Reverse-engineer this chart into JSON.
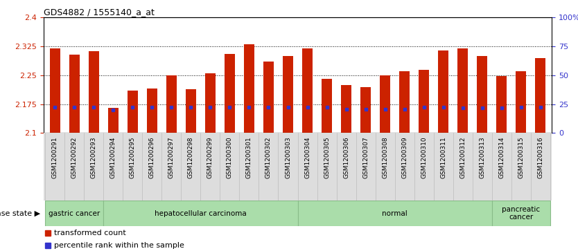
{
  "title": "GDS4882 / 1555140_a_at",
  "samples": [
    "GSM1200291",
    "GSM1200292",
    "GSM1200293",
    "GSM1200294",
    "GSM1200295",
    "GSM1200296",
    "GSM1200297",
    "GSM1200298",
    "GSM1200299",
    "GSM1200300",
    "GSM1200301",
    "GSM1200302",
    "GSM1200303",
    "GSM1200304",
    "GSM1200305",
    "GSM1200306",
    "GSM1200307",
    "GSM1200308",
    "GSM1200309",
    "GSM1200310",
    "GSM1200311",
    "GSM1200312",
    "GSM1200313",
    "GSM1200314",
    "GSM1200315",
    "GSM1200316"
  ],
  "bar_values": [
    2.319,
    2.303,
    2.313,
    2.165,
    2.21,
    2.215,
    2.25,
    2.213,
    2.255,
    2.306,
    2.33,
    2.285,
    2.3,
    2.32,
    2.24,
    2.225,
    2.22,
    2.25,
    2.26,
    2.265,
    2.315,
    2.32,
    2.3,
    2.248,
    2.26,
    2.295
  ],
  "percentile_values": [
    2.168,
    2.168,
    2.168,
    2.16,
    2.168,
    2.168,
    2.168,
    2.168,
    2.168,
    2.168,
    2.168,
    2.168,
    2.168,
    2.168,
    2.168,
    2.162,
    2.162,
    2.162,
    2.162,
    2.168,
    2.168,
    2.165,
    2.165,
    2.165,
    2.168,
    2.168
  ],
  "ylim": [
    2.1,
    2.4
  ],
  "yticks": [
    2.1,
    2.175,
    2.25,
    2.325,
    2.4
  ],
  "ytick_labels": [
    "2.1",
    "2.175",
    "2.25",
    "2.325",
    "2.4"
  ],
  "right_yticks": [
    0,
    25,
    50,
    75,
    100
  ],
  "right_ytick_labels": [
    "0",
    "25",
    "50",
    "75",
    "100%"
  ],
  "bar_color": "#CC2200",
  "percentile_color": "#3333CC",
  "bg_color": "#FFFFFF",
  "plot_bg_color": "#FFFFFF",
  "grid_color": "#000000",
  "disease_groups": [
    {
      "label": "gastric cancer",
      "start": 0,
      "end": 3
    },
    {
      "label": "hepatocellular carcinoma",
      "start": 3,
      "end": 13
    },
    {
      "label": "normal",
      "start": 13,
      "end": 23
    },
    {
      "label": "pancreatic\ncancer",
      "start": 23,
      "end": 26
    }
  ],
  "legend_items": [
    {
      "label": "transformed count",
      "color": "#CC2200"
    },
    {
      "label": "percentile rank within the sample",
      "color": "#3333CC"
    }
  ],
  "axis_label_color_left": "#CC2200",
  "axis_label_color_right": "#3333CC",
  "strip_color": "#AADDAA",
  "strip_edge_color": "#88BB88",
  "xtick_bg_color": "#DDDDDD"
}
